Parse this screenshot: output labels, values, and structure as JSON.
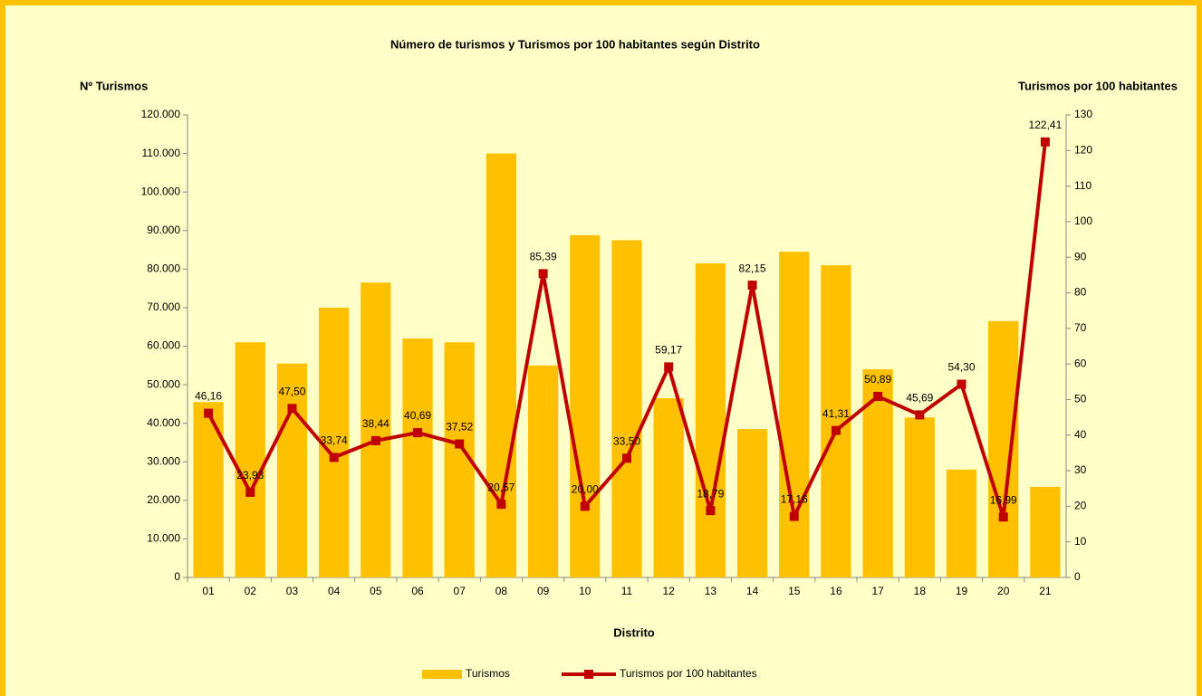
{
  "chart_data": {
    "type": "bar_line",
    "title": "Número de turismos y Turismos por 100 habitantes según Distrito",
    "y_label": "Nº Turismos",
    "y2_label": "Turismos por 100 habitantes",
    "x_label": "Distrito",
    "categories": [
      "01",
      "02",
      "03",
      "04",
      "05",
      "06",
      "07",
      "08",
      "09",
      "10",
      "11",
      "12",
      "13",
      "14",
      "15",
      "16",
      "17",
      "18",
      "19",
      "20",
      "21"
    ],
    "series": [
      {
        "name": "Turismos",
        "type": "bar",
        "color": "#FFC000",
        "values": [
          45500,
          61000,
          55500,
          70000,
          76500,
          62000,
          61000,
          110000,
          55000,
          88800,
          87500,
          46500,
          81500,
          38500,
          84500,
          81000,
          54000,
          41500,
          28000,
          66500,
          23500
        ]
      },
      {
        "name": "Turismos por 100 habitantes",
        "type": "line",
        "axis": "y2",
        "color": "#C00000",
        "values": [
          46.16,
          23.93,
          47.5,
          33.74,
          38.44,
          40.69,
          37.52,
          20.57,
          85.39,
          20.0,
          33.5,
          59.17,
          18.79,
          82.15,
          17.16,
          41.31,
          50.89,
          45.69,
          54.3,
          16.99,
          122.41
        ],
        "value_labels": [
          "46,16",
          "23,93",
          "47,50",
          "33,74",
          "38,44",
          "40,69",
          "37,52",
          "20,57",
          "85,39",
          "20,00",
          "33,50",
          "59,17",
          "18,79",
          "82,15",
          "17,16",
          "41,31",
          "50,89",
          "45,69",
          "54,30",
          "16,99",
          "122,41"
        ]
      }
    ],
    "ylim": [
      0,
      120000
    ],
    "yticks": [
      0,
      {
        "value": 10000,
        "label": "10.000"
      },
      {
        "value": 20000,
        "label": "20.000"
      },
      {
        "value": 30000,
        "label": "30.000"
      },
      {
        "value": 40000,
        "label": "40.000"
      },
      {
        "value": 50000,
        "label": "50.000"
      },
      {
        "value": 60000,
        "label": "60.000"
      },
      {
        "value": 70000,
        "label": "70.000"
      },
      {
        "value": 80000,
        "label": "80.000"
      },
      {
        "value": 90000,
        "label": "90.000"
      },
      {
        "value": 100000,
        "label": "100.000"
      },
      {
        "value": 110000,
        "label": "110.000"
      },
      {
        "value": 120000,
        "label": "120.000"
      }
    ],
    "y2lim": [
      0,
      130
    ],
    "y2ticks": [
      0,
      10,
      20,
      30,
      40,
      50,
      60,
      70,
      80,
      90,
      100,
      110,
      120,
      130
    ],
    "legend": "bottom"
  }
}
